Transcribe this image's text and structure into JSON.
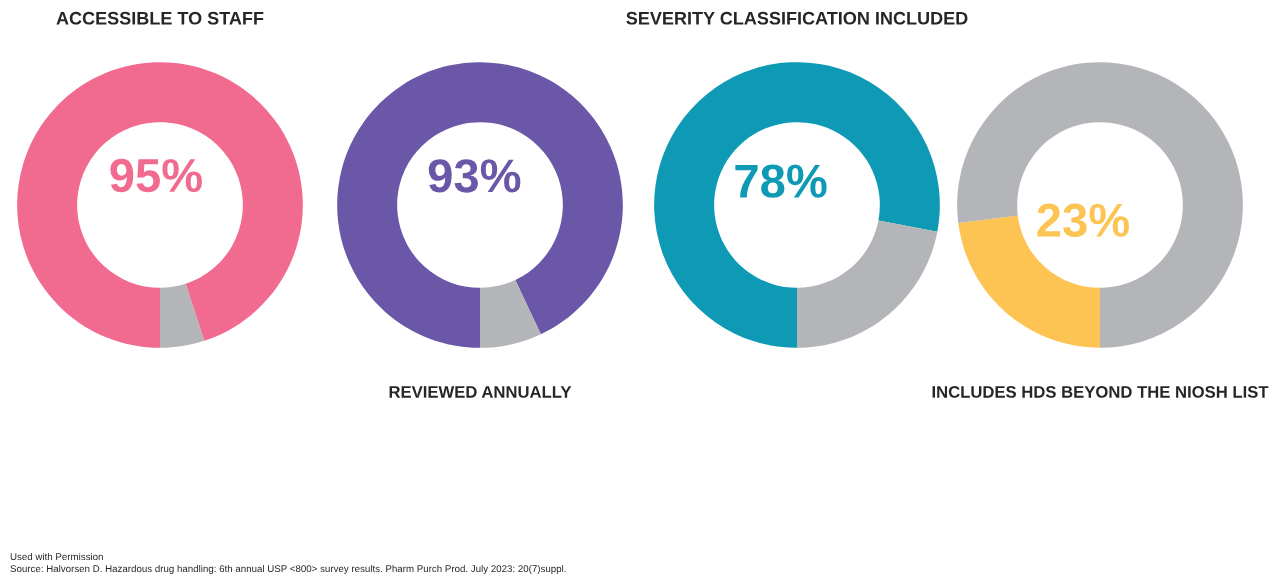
{
  "chart_data": [
    {
      "type": "donut",
      "title": "ACCESSIBLE TO STAFF",
      "categories": [
        null,
        null
      ],
      "values": [
        95,
        5
      ],
      "colors": [
        "#f06b8f",
        "#b3b5b8"
      ],
      "value_labels": [
        "95%",
        null
      ],
      "annotations": [
        "Used with Permission",
        "Source: Halvorsen D. Hazardous drug handling: 6th annual USP <800> survey results. Pharm Purch Prod. July 2023: 20(7)suppl."
      ]
    },
    {
      "type": "donut",
      "xlabel": "REVIEWED ANNUALLY",
      "categories": [
        null,
        null
      ],
      "values": [
        93,
        7
      ],
      "colors": [
        "#6a57a8",
        "#b3b5b8"
      ],
      "value_labels": [
        "93%",
        null
      ]
    },
    {
      "type": "donut",
      "title": "SEVERITY CLASSIFICATION INCLUDED",
      "categories": [
        null,
        null
      ],
      "values": [
        78,
        22
      ],
      "colors": [
        "#0e9ab5",
        "#b3b5b8"
      ],
      "value_labels": [
        "78%",
        null
      ]
    },
    {
      "type": "donut",
      "xlabel": "INCLUDES HDS BEYOND THE NIOSH LIST",
      "categories": [
        null,
        null
      ],
      "values": [
        23,
        77
      ],
      "colors": [
        "#fdc453",
        "#b3b5b8"
      ],
      "value_labels": [
        "23%",
        null
      ]
    }
  ]
}
